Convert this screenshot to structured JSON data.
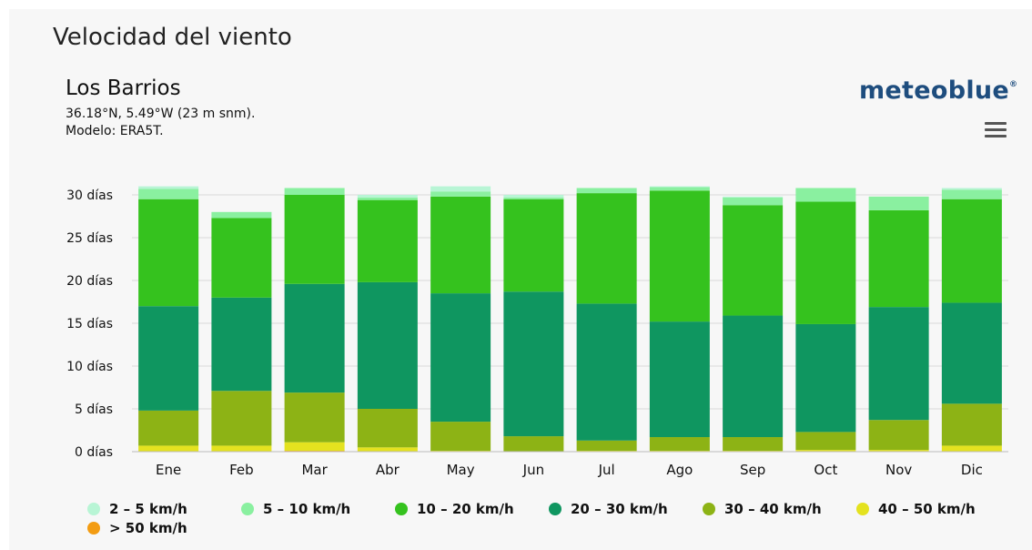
{
  "header": {
    "title": "Velocidad del viento",
    "location": "Los Barrios",
    "coordinates": "36.18°N, 5.49°W (23 m snm).",
    "model": "Modelo: ERA5T.",
    "brand": "meteoblue",
    "brand_mark": "®",
    "menu_icon": "hamburger-menu-icon"
  },
  "chart_data": {
    "type": "bar",
    "stacked": true,
    "title": "",
    "xlabel": "",
    "ylabel": "",
    "ylim": [
      0,
      30
    ],
    "y_ticks": [
      "0 días",
      "5 días",
      "10 días",
      "15 días",
      "20 días",
      "25 días",
      "30 días"
    ],
    "grid": true,
    "legend_position": "bottom",
    "categories": [
      "Ene",
      "Feb",
      "Mar",
      "Abr",
      "May",
      "Jun",
      "Jul",
      "Ago",
      "Sep",
      "Oct",
      "Nov",
      "Dic"
    ],
    "series": [
      {
        "name": "> 50 km/h",
        "color": "#f39c12",
        "values": [
          0,
          0,
          0.1,
          0,
          0,
          0,
          0,
          0,
          0,
          0,
          0,
          0
        ]
      },
      {
        "name": "40 – 50 km/h",
        "color": "#e4e21f",
        "values": [
          0.7,
          0.7,
          1,
          0.5,
          0.1,
          0,
          0.1,
          0.1,
          0.1,
          0.2,
          0.2,
          0.7
        ]
      },
      {
        "name": "30 – 40 km/h",
        "color": "#8db315",
        "values": [
          4.1,
          6.4,
          5.8,
          4.5,
          3.4,
          1.8,
          1.2,
          1.6,
          1.6,
          2.1,
          3.5,
          4.9
        ]
      },
      {
        "name": "20 – 30 km/h",
        "color": "#0f9660",
        "values": [
          12.2,
          10.9,
          12.7,
          14.8,
          15,
          16.9,
          16,
          13.5,
          14.2,
          12.6,
          13.2,
          11.8
        ]
      },
      {
        "name": "10 – 20 km/h",
        "color": "#35c21e",
        "values": [
          12.5,
          9.3,
          10.4,
          9.6,
          11.3,
          10.8,
          12.9,
          15.3,
          12.9,
          14.3,
          11.3,
          12.1
        ]
      },
      {
        "name": "5 – 10 km/h",
        "color": "#8af0a0",
        "values": [
          1.2,
          0.7,
          0.8,
          0.3,
          0.6,
          0.2,
          0.6,
          0.4,
          0.9,
          1.6,
          1.6,
          1.1
        ]
      },
      {
        "name": "2 – 5 km/h",
        "color": "#b8f5d5",
        "values": [
          0.3,
          0,
          0,
          0.3,
          0.6,
          0.3,
          0,
          0.1,
          0.1,
          0,
          0,
          0.2
        ]
      }
    ],
    "legend_order": [
      "2 – 5 km/h",
      "5 – 10 km/h",
      "10 – 20 km/h",
      "20 – 30 km/h",
      "30 – 40 km/h",
      "40 – 50 km/h",
      "> 50 km/h"
    ]
  }
}
